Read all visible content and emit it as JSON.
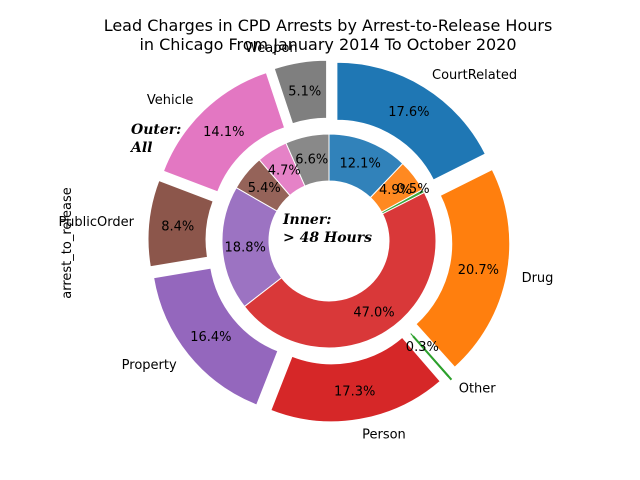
{
  "chart_data": {
    "type": "pie",
    "variant": "nested-donut",
    "title_lines": [
      "Lead Charges in CPD Arrests by Arrest-to-Release Hours",
      "in Chicago From January 2014 To October 2020"
    ],
    "ylabel": "arrest_to_release",
    "outer_note": [
      "Outer:",
      "All"
    ],
    "inner_note": [
      "Inner:",
      "> 48 Hours"
    ],
    "categories": [
      "Weapon",
      "Vehicle",
      "PublicOrder",
      "Property",
      "Person",
      "Other",
      "Drug",
      "CourtRelated"
    ],
    "colors": [
      "#7f7f7f",
      "#e377c2",
      "#8c564b",
      "#9467bd",
      "#d62728",
      "#2ca02c",
      "#ff7f0e",
      "#1f77b4"
    ],
    "outer": {
      "name": "All",
      "values": [
        5.1,
        14.1,
        8.4,
        16.4,
        17.3,
        0.3,
        20.7,
        17.6
      ],
      "labels": [
        "5.1%",
        "14.1%",
        "8.4%",
        "16.4%",
        "17.3%",
        "0.3%",
        "20.7%",
        "17.6%"
      ]
    },
    "inner": {
      "name": "> 48 Hours",
      "values": [
        6.6,
        4.7,
        5.4,
        18.8,
        47.0,
        0.5,
        4.9,
        12.1
      ],
      "labels": [
        "6.6%",
        "4.7%",
        "5.4%",
        "18.8%",
        "47.0%",
        "0.5%",
        "4.9%",
        "12.1%"
      ]
    }
  }
}
